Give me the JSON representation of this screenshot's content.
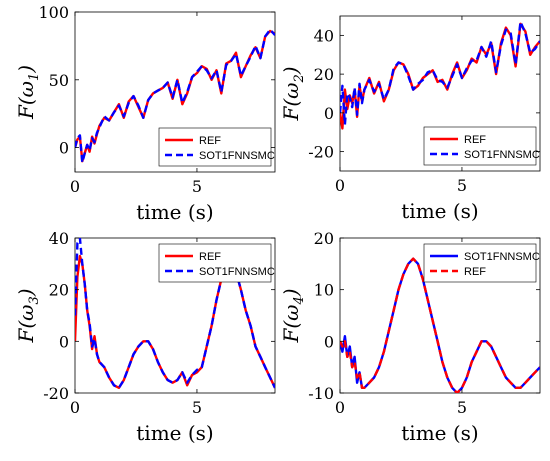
{
  "chart_data": [
    {
      "type": "line",
      "ylabel": "F(ω1)",
      "ylabel_base": "F(ω",
      "ylabel_sub": "1",
      "xlabel": "time (s)",
      "xlim": [
        0,
        8.2
      ],
      "ylim": [
        -18,
        100
      ],
      "xticks": [
        0,
        5
      ],
      "yticks": [
        0,
        50,
        100
      ],
      "legend_position": "bottom-right",
      "series": [
        {
          "name": "REF",
          "color": "#ff0000",
          "style": "solid",
          "x": [
            0.0,
            0.1,
            0.2,
            0.3,
            0.4,
            0.5,
            0.6,
            0.7,
            0.8,
            0.9,
            1.0,
            1.2,
            1.4,
            1.6,
            1.8,
            2.0,
            2.2,
            2.4,
            2.6,
            2.8,
            3.0,
            3.2,
            3.4,
            3.6,
            3.8,
            4.0,
            4.2,
            4.4,
            4.6,
            4.8,
            5.0,
            5.2,
            5.4,
            5.6,
            5.8,
            6.0,
            6.2,
            6.4,
            6.6,
            6.8,
            7.0,
            7.2,
            7.4,
            7.6,
            7.8,
            8.0,
            8.2
          ],
          "y": [
            0,
            6,
            8,
            -10,
            -4,
            2,
            -3,
            8,
            3,
            10,
            16,
            22,
            20,
            26,
            32,
            22,
            34,
            38,
            30,
            22,
            35,
            40,
            42,
            44,
            48,
            36,
            50,
            32,
            40,
            52,
            55,
            60,
            58,
            50,
            57,
            40,
            62,
            64,
            70,
            52,
            60,
            68,
            74,
            66,
            82,
            86,
            84
          ]
        },
        {
          "name": "SOT1FNNSMC",
          "color": "#0000ff",
          "style": "dashed",
          "x": [
            0.0,
            0.1,
            0.2,
            0.3,
            0.4,
            0.5,
            0.6,
            0.7,
            0.8,
            0.9,
            1.0,
            1.2,
            1.4,
            1.6,
            1.8,
            2.0,
            2.2,
            2.4,
            2.6,
            2.8,
            3.0,
            3.2,
            3.4,
            3.6,
            3.8,
            4.0,
            4.2,
            4.4,
            4.6,
            4.8,
            5.0,
            5.2,
            5.4,
            5.6,
            5.8,
            6.0,
            6.2,
            6.4,
            6.6,
            6.8,
            7.0,
            7.2,
            7.4,
            7.6,
            7.8,
            8.0,
            8.2
          ],
          "y": [
            0,
            7,
            9,
            -11,
            -4,
            2,
            -2,
            7,
            4,
            11,
            15,
            23,
            20,
            26,
            31,
            23,
            33,
            38,
            31,
            22,
            35,
            40,
            42,
            44,
            48,
            37,
            50,
            33,
            41,
            52,
            56,
            60,
            57,
            51,
            57,
            41,
            61,
            64,
            69,
            53,
            60,
            67,
            75,
            66,
            82,
            87,
            83
          ]
        }
      ]
    },
    {
      "type": "line",
      "ylabel": "F(ω2)",
      "ylabel_base": "F(ω",
      "ylabel_sub": "2",
      "xlabel": "time (s)",
      "xlim": [
        0,
        8.2
      ],
      "ylim": [
        -30,
        50
      ],
      "xticks": [
        0,
        5
      ],
      "yticks": [
        -20,
        0,
        20,
        40
      ],
      "legend_position": "bottom-right",
      "series": [
        {
          "name": "REF",
          "color": "#ff0000",
          "style": "solid",
          "x": [
            0.0,
            0.1,
            0.2,
            0.3,
            0.4,
            0.5,
            0.6,
            0.7,
            0.8,
            0.9,
            1.0,
            1.2,
            1.4,
            1.6,
            1.8,
            2.0,
            2.2,
            2.4,
            2.6,
            2.8,
            3.0,
            3.2,
            3.4,
            3.6,
            3.8,
            4.0,
            4.2,
            4.4,
            4.6,
            4.8,
            5.0,
            5.2,
            5.4,
            5.6,
            5.8,
            6.0,
            6.2,
            6.4,
            6.6,
            6.8,
            7.0,
            7.2,
            7.4,
            7.6,
            7.8,
            8.0,
            8.2
          ],
          "y": [
            0,
            -8,
            12,
            2,
            9,
            5,
            12,
            -2,
            14,
            6,
            12,
            18,
            10,
            16,
            6,
            12,
            22,
            26,
            25,
            20,
            12,
            14,
            18,
            20,
            22,
            16,
            17,
            12,
            20,
            26,
            18,
            22,
            28,
            26,
            34,
            30,
            36,
            20,
            36,
            44,
            40,
            24,
            46,
            42,
            30,
            34,
            37
          ]
        },
        {
          "name": "SOT1FNNSMC",
          "color": "#0000ff",
          "style": "dashed",
          "x": [
            0.0,
            0.1,
            0.2,
            0.3,
            0.4,
            0.5,
            0.6,
            0.7,
            0.8,
            0.9,
            1.0,
            1.2,
            1.4,
            1.6,
            1.8,
            2.0,
            2.2,
            2.4,
            2.6,
            2.8,
            3.0,
            3.2,
            3.4,
            3.6,
            3.8,
            4.0,
            4.2,
            4.4,
            4.6,
            4.8,
            5.0,
            5.2,
            5.4,
            5.6,
            5.8,
            6.0,
            6.2,
            6.4,
            6.6,
            6.8,
            7.0,
            7.2,
            7.4,
            7.6,
            7.8,
            8.0,
            8.2
          ],
          "y": [
            0,
            14,
            -6,
            10,
            8,
            3,
            13,
            -1,
            15,
            5,
            12,
            17,
            11,
            15,
            7,
            12,
            23,
            26,
            25,
            19,
            12,
            15,
            17,
            21,
            22,
            17,
            16,
            13,
            19,
            25,
            18,
            23,
            27,
            27,
            34,
            29,
            37,
            21,
            35,
            43,
            41,
            25,
            47,
            41,
            31,
            33,
            37
          ]
        }
      ]
    },
    {
      "type": "line",
      "ylabel": "F(ω3)",
      "ylabel_base": "F(ω",
      "ylabel_sub": "3",
      "xlabel": "time (s)",
      "xlim": [
        0,
        8.2
      ],
      "ylim": [
        -20,
        40
      ],
      "xticks": [
        0,
        5
      ],
      "yticks": [
        -20,
        0,
        20,
        40
      ],
      "legend_position": "top-right",
      "series": [
        {
          "name": "REF",
          "color": "#ff0000",
          "style": "solid",
          "x": [
            0.0,
            0.1,
            0.2,
            0.3,
            0.4,
            0.5,
            0.6,
            0.7,
            0.8,
            0.9,
            1.0,
            1.2,
            1.4,
            1.6,
            1.8,
            2.0,
            2.2,
            2.4,
            2.6,
            2.8,
            3.0,
            3.2,
            3.4,
            3.6,
            3.8,
            4.0,
            4.2,
            4.4,
            4.6,
            4.8,
            5.0,
            5.2,
            5.4,
            5.6,
            5.8,
            6.0,
            6.2,
            6.4,
            6.6,
            6.8,
            7.0,
            7.2,
            7.4,
            7.6,
            7.8,
            8.0,
            8.2
          ],
          "y": [
            0,
            25,
            33,
            30,
            22,
            12,
            6,
            -3,
            2,
            -5,
            -8,
            -10,
            -14,
            -17,
            -18,
            -15,
            -10,
            -5,
            -2,
            0,
            0,
            -3,
            -8,
            -12,
            -15,
            -16,
            -15,
            -12,
            -17,
            -13,
            -12,
            -10,
            -2,
            6,
            16,
            24,
            30,
            31,
            27,
            20,
            12,
            6,
            -2,
            -6,
            -10,
            -14,
            -18
          ]
        },
        {
          "name": "SOT1FNNSMC",
          "color": "#0000ff",
          "style": "dashed",
          "x": [
            0.0,
            0.1,
            0.2,
            0.3,
            0.4,
            0.5,
            0.6,
            0.7,
            0.8,
            0.9,
            1.0,
            1.2,
            1.4,
            1.6,
            1.8,
            2.0,
            2.2,
            2.4,
            2.6,
            2.8,
            3.0,
            3.2,
            3.4,
            3.6,
            3.8,
            4.0,
            4.2,
            4.4,
            4.6,
            4.8,
            5.0,
            5.2,
            5.4,
            5.6,
            5.8,
            6.0,
            6.2,
            6.4,
            6.6,
            6.8,
            7.0,
            7.2,
            7.4,
            7.6,
            7.8,
            8.0,
            8.2
          ],
          "y": [
            10,
            38,
            40,
            30,
            22,
            12,
            7,
            -2,
            1,
            -5,
            -8,
            -10,
            -14,
            -17,
            -18,
            -15,
            -10,
            -5,
            -2,
            0,
            0,
            -3,
            -8,
            -12,
            -15,
            -16,
            -15,
            -12,
            -16,
            -13,
            -11,
            -10,
            -2,
            6,
            16,
            24,
            30,
            31,
            27,
            20,
            12,
            6,
            -2,
            -6,
            -10,
            -14,
            -18
          ]
        }
      ]
    },
    {
      "type": "line",
      "ylabel": "F(ω4)",
      "ylabel_base": "F(ω",
      "ylabel_sub": "4",
      "xlabel": "time (s)",
      "xlim": [
        0,
        8.2
      ],
      "ylim": [
        -10,
        20
      ],
      "xticks": [
        0,
        5
      ],
      "yticks": [
        -10,
        0,
        10,
        20
      ],
      "legend_position": "top-right",
      "series": [
        {
          "name": "SOT1FNNSMC",
          "color": "#0000ff",
          "style": "solid",
          "x": [
            0.0,
            0.1,
            0.2,
            0.3,
            0.4,
            0.5,
            0.6,
            0.7,
            0.8,
            0.9,
            1.0,
            1.2,
            1.4,
            1.6,
            1.8,
            2.0,
            2.2,
            2.4,
            2.6,
            2.8,
            3.0,
            3.2,
            3.4,
            3.6,
            3.8,
            4.0,
            4.2,
            4.4,
            4.6,
            4.8,
            5.0,
            5.2,
            5.4,
            5.6,
            5.8,
            6.0,
            6.2,
            6.4,
            6.6,
            6.8,
            7.0,
            7.2,
            7.4,
            7.6,
            7.8,
            8.0,
            8.2
          ],
          "y": [
            0,
            -2,
            1,
            -3,
            -1,
            -5,
            -3,
            -8,
            -6,
            -9,
            -9,
            -8,
            -7,
            -5,
            -2,
            2,
            6,
            10,
            13,
            15,
            16,
            15,
            12,
            8,
            4,
            0,
            -4,
            -7,
            -9,
            -10,
            -9,
            -7,
            -4,
            -2,
            0,
            0,
            -1,
            -3,
            -5,
            -7,
            -8,
            -9,
            -9,
            -8,
            -7,
            -6,
            -5
          ]
        },
        {
          "name": "REF",
          "color": "#ff0000",
          "style": "dashed",
          "x": [
            0.0,
            0.1,
            0.2,
            0.3,
            0.4,
            0.5,
            0.6,
            0.7,
            0.8,
            0.9,
            1.0,
            1.2,
            1.4,
            1.6,
            1.8,
            2.0,
            2.2,
            2.4,
            2.6,
            2.8,
            3.0,
            3.2,
            3.4,
            3.6,
            3.8,
            4.0,
            4.2,
            4.4,
            4.6,
            4.8,
            5.0,
            5.2,
            5.4,
            5.6,
            5.8,
            6.0,
            6.2,
            6.4,
            6.6,
            6.8,
            7.0,
            7.2,
            7.4,
            7.6,
            7.8,
            8.0,
            8.2
          ],
          "y": [
            0,
            -1,
            0,
            -3,
            -2,
            -5,
            -4,
            -7,
            -6,
            -9,
            -9,
            -8,
            -7,
            -5,
            -2,
            2,
            6,
            10,
            13,
            15,
            16,
            15,
            12,
            8,
            4,
            0,
            -4,
            -7,
            -9,
            -10,
            -9,
            -7,
            -4,
            -2,
            0,
            0,
            -1,
            -3,
            -5,
            -7,
            -8,
            -9,
            -9,
            -8,
            -7,
            -6,
            -5
          ]
        }
      ]
    }
  ]
}
